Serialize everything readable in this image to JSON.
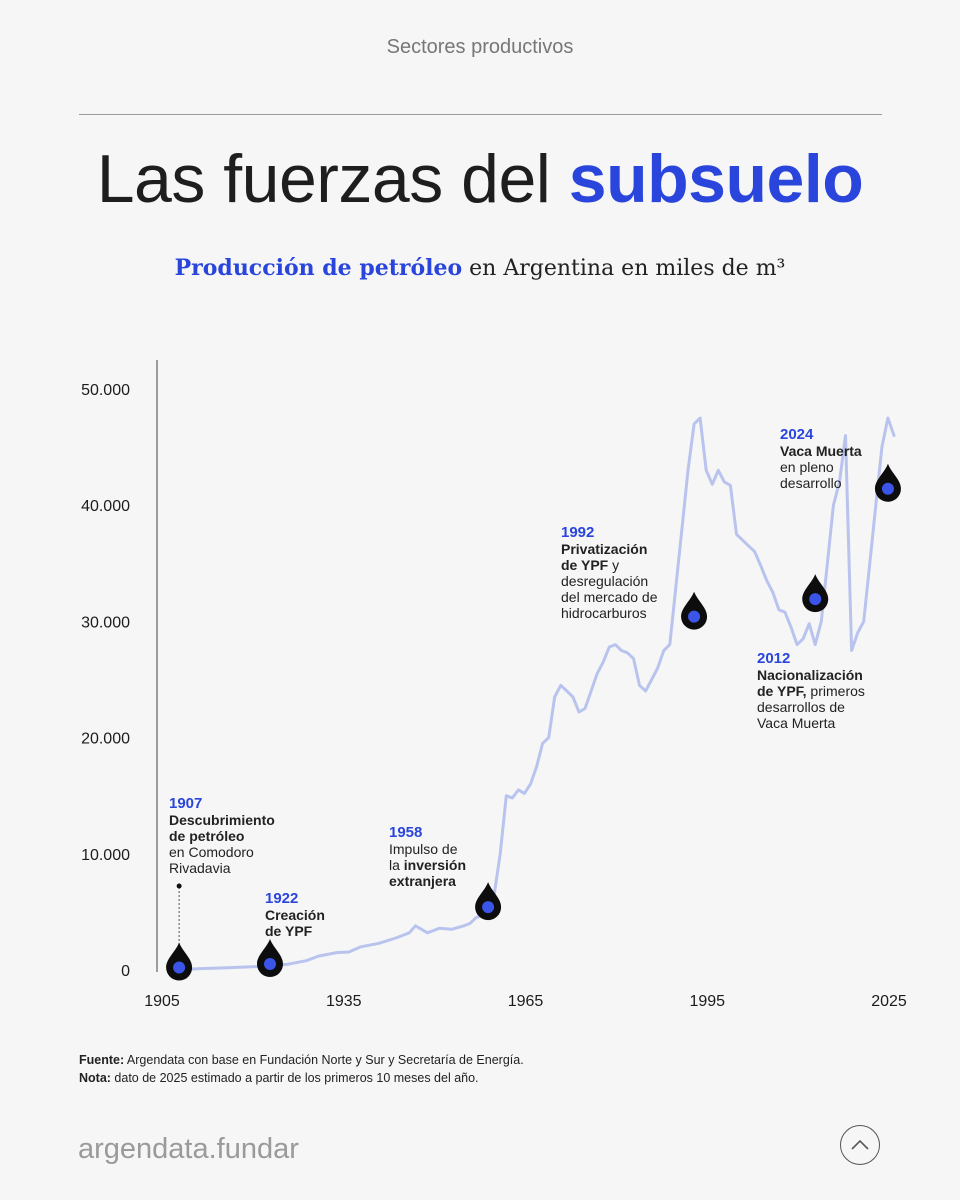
{
  "header": {
    "section": "Sectores productivos",
    "title_plain": "Las fuerzas del ",
    "title_accent": "subsuelo",
    "subtitle_accent": "Producción de petróleo",
    "subtitle_rest": " en Argentina en miles de m³"
  },
  "chart_data": {
    "type": "line",
    "title": "Producción de petróleo en Argentina en miles de m³",
    "xlabel": "",
    "ylabel": "",
    "xlim": [
      1905,
      2025
    ],
    "ylim": [
      0,
      50000
    ],
    "x_ticks": [
      {
        "value": 1905,
        "label": "1905"
      },
      {
        "value": 1935,
        "label": "1935"
      },
      {
        "value": 1965,
        "label": "1965"
      },
      {
        "value": 1995,
        "label": "1995"
      },
      {
        "value": 2025,
        "label": "2025"
      }
    ],
    "y_ticks": [
      {
        "value": 0,
        "label": "0"
      },
      {
        "value": 10000,
        "label": "10.000"
      },
      {
        "value": 20000,
        "label": "20.000"
      },
      {
        "value": 30000,
        "label": "30.000"
      },
      {
        "value": 40000,
        "label": "40.000"
      },
      {
        "value": 50000,
        "label": "50.000"
      }
    ],
    "grid": false,
    "line_color": "#b9c4ee",
    "marker_color": "#3a55e8",
    "x": [
      1907,
      1910,
      1915,
      1920,
      1925,
      1928,
      1930,
      1933,
      1935,
      1937,
      1940,
      1943,
      1945,
      1946,
      1948,
      1950,
      1952,
      1954,
      1955,
      1956,
      1957,
      1958,
      1959,
      1960,
      1961,
      1962,
      1963,
      1964,
      1965,
      1966,
      1967,
      1968,
      1969,
      1970,
      1971,
      1972,
      1973,
      1974,
      1975,
      1976,
      1977,
      1978,
      1979,
      1980,
      1981,
      1982,
      1983,
      1984,
      1985,
      1986,
      1987,
      1988,
      1989,
      1990,
      1991,
      1992,
      1993,
      1994,
      1995,
      1996,
      1997,
      1998,
      1999,
      2000,
      2001,
      2002,
      2003,
      2004,
      2005,
      2006,
      2007,
      2008,
      2009,
      2010,
      2011,
      2012,
      2013,
      2014,
      2015,
      2016,
      2017,
      2018,
      2019,
      2020,
      2021,
      2022,
      2023,
      2024,
      2025
    ],
    "values": [
      0,
      100,
      200,
      300,
      500,
      800,
      1200,
      1500,
      1550,
      2000,
      2300,
      2800,
      3200,
      3800,
      3200,
      3600,
      3500,
      3800,
      4000,
      4500,
      4700,
      4800,
      6500,
      10000,
      15000,
      14800,
      15500,
      15200,
      16000,
      17500,
      19500,
      20000,
      23500,
      24500,
      24000,
      23500,
      22200,
      22500,
      24000,
      25500,
      26500,
      27800,
      28000,
      27500,
      27300,
      26800,
      24500,
      24000,
      25000,
      26000,
      27500,
      28000,
      33000,
      38000,
      43000,
      47000,
      47500,
      43000,
      41800,
      43000,
      42000,
      41700,
      37500,
      37000,
      36500,
      36000,
      34800,
      33500,
      32500,
      31000,
      30800,
      29500,
      28000,
      28500,
      29800,
      28000,
      30000,
      35000,
      40000,
      42000,
      46000,
      27500,
      29000,
      30000,
      35000,
      40000,
      45000,
      47500,
      46000
    ],
    "milestones": [
      {
        "year": 1907,
        "value": 300,
        "label_year": "1907",
        "text": [
          [
            "Descubrimiento",
            true
          ],
          [
            "de petróleo",
            true
          ],
          [
            "en Comodoro",
            false
          ],
          [
            "Rivadavia",
            false
          ]
        ]
      },
      {
        "year": 1922,
        "value": 600,
        "label_year": "1922",
        "text": [
          [
            "Creación",
            true
          ],
          [
            "de YPF",
            true
          ]
        ]
      },
      {
        "year": 1958,
        "value": 5500,
        "label_year": "1958",
        "text": [
          [
            "Impulso de",
            false
          ],
          [
            "la ",
            false,
            "inversión",
            true
          ],
          [
            "extranjera",
            true
          ]
        ]
      },
      {
        "year": 1992,
        "value": 30500,
        "label_year": "1992",
        "text": [
          [
            "Privatización",
            true
          ],
          [
            "de YPF",
            true,
            " y",
            false
          ],
          [
            "desregulación",
            false
          ],
          [
            "del mercado de",
            false
          ],
          [
            "hidrocarburos",
            false
          ]
        ]
      },
      {
        "year": 2012,
        "value": 32000,
        "label_year": "2012",
        "text": [
          [
            "Nacionalización",
            true
          ],
          [
            "de YPF,",
            true,
            " primeros",
            false
          ],
          [
            "desarrollos de",
            false
          ],
          [
            "Vaca Muerta",
            false
          ]
        ]
      },
      {
        "year": 2024,
        "value": 41500,
        "label_year": "2024",
        "text": [
          [
            "Vaca Muerta",
            true
          ],
          [
            "en pleno",
            false
          ],
          [
            "desarrollo",
            false
          ]
        ]
      }
    ]
  },
  "notes": {
    "source_label": "Fuente:",
    "source_text": " Argendata con base en Fundación Norte y Sur y Secretaría de Energía.",
    "note_label": "Nota:",
    "note_text": " dato de 2025 estimado a partir de los primeros 10 meses del año."
  },
  "footer": {
    "brand": "argendata.fundar"
  }
}
